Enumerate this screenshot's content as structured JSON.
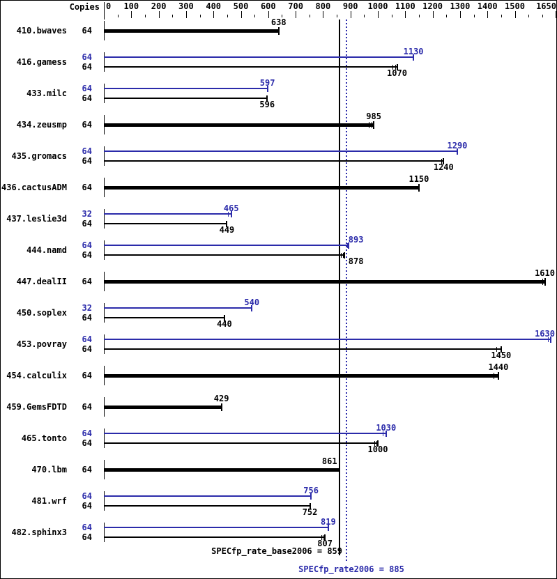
{
  "chart_data": {
    "type": "bar",
    "orientation": "horizontal",
    "copies_header": "Copies",
    "axis": {
      "min": 0,
      "max": 1650,
      "major_step": 100,
      "minor_step": 50,
      "tick_labels": [
        "0",
        "100",
        "200",
        "300",
        "400",
        "500",
        "600",
        "700",
        "800",
        "900",
        "1000",
        "1100",
        "1200",
        "1300",
        "1400",
        "1500",
        "1650"
      ]
    },
    "colors": {
      "base": "#000000",
      "peak": "#2b2baa",
      "background": "#ffffff"
    },
    "reference_lines": [
      {
        "name": "base",
        "style": "solid",
        "value": 859,
        "label": "SPECfp_rate_base2006 = 859",
        "color": "#000000"
      },
      {
        "name": "peak",
        "style": "dotted",
        "value": 885,
        "label": "SPECfp_rate2006 = 885",
        "color": "#2b2baa"
      }
    ],
    "benchmarks": [
      {
        "name": "410.bwaves",
        "bars": [
          {
            "kind": "base",
            "copies": "64",
            "value": 638,
            "runs": []
          }
        ]
      },
      {
        "name": "416.gamess",
        "bars": [
          {
            "kind": "peak",
            "copies": "64",
            "value": 1130,
            "runs": []
          },
          {
            "kind": "base",
            "copies": "64",
            "value": 1070,
            "runs": [
              1053,
              1063
            ]
          }
        ]
      },
      {
        "name": "433.milc",
        "bars": [
          {
            "kind": "peak",
            "copies": "64",
            "value": 597,
            "runs": []
          },
          {
            "kind": "base",
            "copies": "64",
            "value": 596,
            "runs": []
          }
        ]
      },
      {
        "name": "434.zeusmp",
        "bars": [
          {
            "kind": "base",
            "copies": "64",
            "value": 985,
            "runs": [
              966,
              978
            ]
          }
        ]
      },
      {
        "name": "435.gromacs",
        "bars": [
          {
            "kind": "peak",
            "copies": "64",
            "value": 1290,
            "runs": []
          },
          {
            "kind": "base",
            "copies": "64",
            "value": 1240,
            "runs": [
              1231,
              1237
            ]
          }
        ]
      },
      {
        "name": "436.cactusADM",
        "bars": [
          {
            "kind": "base",
            "copies": "64",
            "value": 1150,
            "runs": []
          }
        ]
      },
      {
        "name": "437.leslie3d",
        "bars": [
          {
            "kind": "peak",
            "copies": "32",
            "value": 465,
            "runs": [
              452
            ]
          },
          {
            "kind": "base",
            "copies": "64",
            "value": 449,
            "runs": []
          }
        ]
      },
      {
        "name": "444.namd",
        "bars": [
          {
            "kind": "peak",
            "copies": "64",
            "value": 893,
            "runs": [
              887
            ]
          },
          {
            "kind": "base",
            "copies": "64",
            "value": 878,
            "runs": [
              866,
              872
            ]
          }
        ]
      },
      {
        "name": "447.dealII",
        "bars": [
          {
            "kind": "base",
            "copies": "64",
            "value": 1610,
            "runs": [
              1600,
              1608
            ]
          }
        ]
      },
      {
        "name": "450.soplex",
        "bars": [
          {
            "kind": "peak",
            "copies": "32",
            "value": 540,
            "runs": []
          },
          {
            "kind": "base",
            "copies": "64",
            "value": 440,
            "runs": []
          }
        ]
      },
      {
        "name": "453.povray",
        "bars": [
          {
            "kind": "peak",
            "copies": "64",
            "value": 1630,
            "runs": [
              1622
            ]
          },
          {
            "kind": "base",
            "copies": "64",
            "value": 1450,
            "runs": [
              1432
            ]
          }
        ]
      },
      {
        "name": "454.calculix",
        "bars": [
          {
            "kind": "base",
            "copies": "64",
            "value": 1440,
            "runs": [
              1422,
              1438
            ]
          }
        ]
      },
      {
        "name": "459.GemsFDTD",
        "bars": [
          {
            "kind": "base",
            "copies": "64",
            "value": 429,
            "runs": []
          }
        ]
      },
      {
        "name": "465.tonto",
        "bars": [
          {
            "kind": "peak",
            "copies": "64",
            "value": 1030,
            "runs": [
              1018,
              1027
            ]
          },
          {
            "kind": "base",
            "copies": "64",
            "value": 1000,
            "runs": [
              988,
              995
            ]
          }
        ]
      },
      {
        "name": "470.lbm",
        "bars": [
          {
            "kind": "base",
            "copies": "64",
            "value": 861,
            "runs": []
          }
        ]
      },
      {
        "name": "481.wrf",
        "bars": [
          {
            "kind": "peak",
            "copies": "64",
            "value": 756,
            "runs": []
          },
          {
            "kind": "base",
            "copies": "64",
            "value": 752,
            "runs": []
          }
        ]
      },
      {
        "name": "482.sphinx3",
        "bars": [
          {
            "kind": "peak",
            "copies": "64",
            "value": 819,
            "runs": []
          },
          {
            "kind": "base",
            "copies": "64",
            "value": 807,
            "runs": [
              794,
              800,
              806
            ]
          }
        ]
      }
    ]
  }
}
